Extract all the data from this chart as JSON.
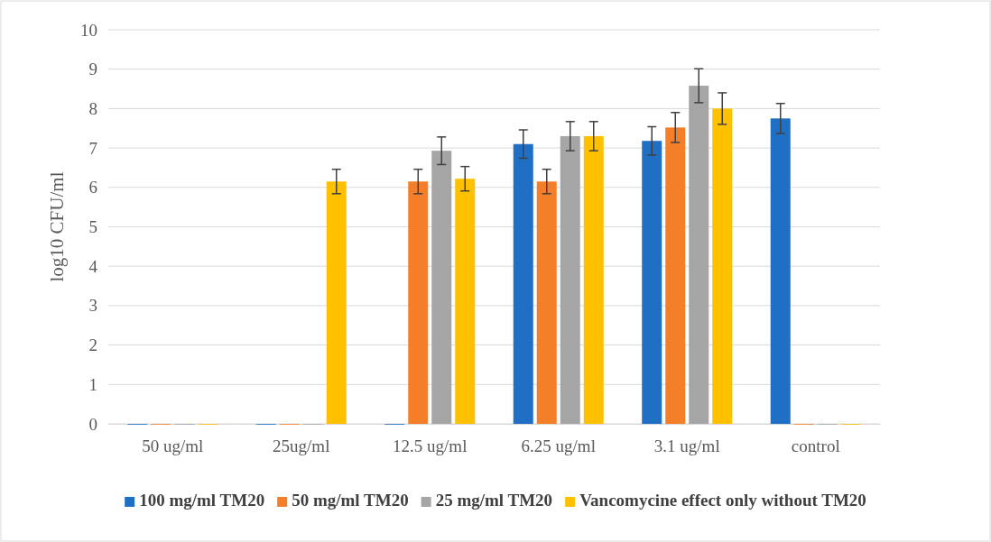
{
  "chart_data": {
    "type": "bar",
    "ylabel": "log10 CFU/ml",
    "categories": [
      "50 ug/ml",
      "25ug/ml",
      "12.5 ug/ml",
      "6.25 ug/ml",
      "3.1 ug/ml",
      "control"
    ],
    "series": [
      {
        "name": "100 mg/ml TM20",
        "color": "#1f6fc5",
        "values": [
          0,
          0,
          0,
          7.1,
          7.18,
          7.75
        ],
        "errors": [
          null,
          null,
          null,
          0.36,
          0.36,
          0.38
        ]
      },
      {
        "name": "50 mg/ml TM20",
        "color": "#f57f29",
        "values": [
          0,
          0,
          6.15,
          6.15,
          7.52,
          0
        ],
        "errors": [
          null,
          null,
          0.31,
          0.31,
          0.38,
          null
        ]
      },
      {
        "name": "25 mg/ml TM20",
        "color": "#a5a5a5",
        "values": [
          0,
          0,
          6.93,
          7.3,
          8.58,
          0
        ],
        "errors": [
          null,
          null,
          0.35,
          0.37,
          0.43,
          null
        ]
      },
      {
        "name": "Vancomycine effect only without TM20",
        "color": "#ffc000",
        "values": [
          0,
          6.15,
          6.22,
          7.3,
          8.0,
          0
        ],
        "errors": [
          null,
          0.31,
          0.31,
          0.37,
          0.4,
          null
        ]
      }
    ],
    "ylim": [
      0,
      10
    ],
    "yticks": [
      0,
      1,
      2,
      3,
      4,
      5,
      6,
      7,
      8,
      9,
      10
    ],
    "grid": "y",
    "legend": "bottom"
  }
}
